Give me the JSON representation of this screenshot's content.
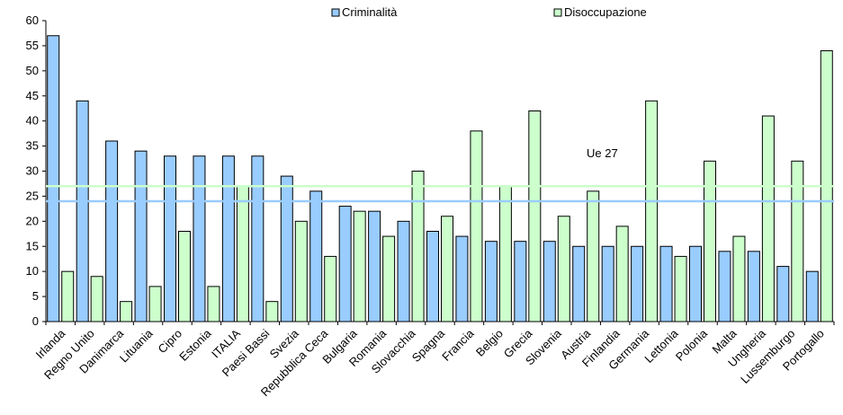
{
  "chart_data": {
    "type": "bar",
    "categories": [
      "Irlanda",
      "Regno Unito",
      "Danimarca",
      "Lituania",
      "Cipro",
      "Estonia",
      "ITALIA",
      "Paesi Bassi",
      "Svezia",
      "Repubblica Ceca",
      "Bulgaria",
      "Romania",
      "Slovacchia",
      "Spagna",
      "Francia",
      "Belgio",
      "Grecia",
      "Slovenia",
      "Austria",
      "Finlandia",
      "Germania",
      "Lettonia",
      "Polonia",
      "Malta",
      "Ungheria",
      "Lussemburgo",
      "Portogallo"
    ],
    "series": [
      {
        "name": "Criminalità",
        "color": "#99ccff",
        "values": [
          57,
          44,
          36,
          34,
          33,
          33,
          33,
          33,
          29,
          26,
          23,
          22,
          20,
          18,
          17,
          16,
          16,
          16,
          15,
          15,
          15,
          15,
          15,
          14,
          14,
          11,
          10
        ]
      },
      {
        "name": "Disoccupazione",
        "color": "#ccffcc",
        "values": [
          10,
          9,
          4,
          7,
          18,
          7,
          27,
          4,
          20,
          13,
          22,
          17,
          30,
          21,
          38,
          27,
          42,
          21,
          26,
          19,
          44,
          13,
          32,
          17,
          41,
          32,
          54
        ]
      }
    ],
    "reference_lines": [
      {
        "series": "Criminalità",
        "value": 24,
        "color": "#99ccff"
      },
      {
        "series": "Disoccupazione",
        "value": 27,
        "color": "#ccffcc"
      }
    ],
    "annotation": "Ue 27",
    "ylim": [
      0,
      60
    ],
    "yticks": [
      0,
      5,
      10,
      15,
      20,
      25,
      30,
      35,
      40,
      45,
      50,
      55,
      60
    ],
    "legend_position": "top",
    "grid": false
  }
}
